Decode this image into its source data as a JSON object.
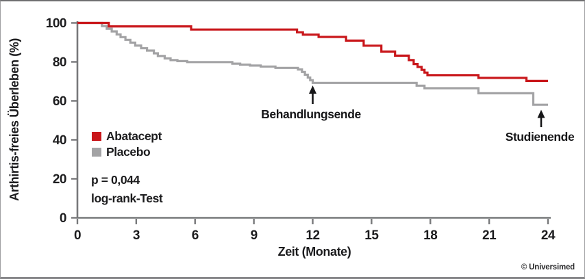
{
  "figure": {
    "copyright": "© Universimed"
  },
  "chart_data": {
    "type": "line",
    "subtype": "kaplan-meier-step-curves",
    "title": "",
    "xlabel": "Zeit (Monate)",
    "ylabel": "Arthirtis-freies Überleben (%)",
    "xlim": [
      0,
      24
    ],
    "ylim": [
      0,
      100
    ],
    "xticks": [
      0,
      3,
      6,
      9,
      12,
      15,
      18,
      21,
      24
    ],
    "yticks": [
      0,
      20,
      40,
      60,
      80,
      100
    ],
    "grid": false,
    "legend_position": "inside-left-middle",
    "axis_color": "#77787a",
    "text_color": "#1c1c1e",
    "series": [
      {
        "name": "Abatacept",
        "key": "abatacept",
        "color": "#c9171b",
        "points": [
          [
            0,
            100
          ],
          [
            1.6,
            98.2
          ],
          [
            5.8,
            96.6
          ],
          [
            11.2,
            95.2
          ],
          [
            11.5,
            94
          ],
          [
            12.3,
            92.8
          ],
          [
            13.7,
            90.9
          ],
          [
            14.6,
            88.3
          ],
          [
            15.5,
            85.3
          ],
          [
            16.2,
            83.2
          ],
          [
            16.9,
            80.9
          ],
          [
            17.15,
            78.9
          ],
          [
            17.35,
            77.4
          ],
          [
            17.55,
            75.9
          ],
          [
            17.7,
            74.5
          ],
          [
            17.85,
            73.2
          ],
          [
            20.45,
            71.8
          ],
          [
            22.9,
            70.2
          ],
          [
            24,
            70.2
          ]
        ]
      },
      {
        "name": "Placebo",
        "key": "placebo",
        "color": "#a3a3a5",
        "points": [
          [
            0,
            100
          ],
          [
            1.25,
            98.4
          ],
          [
            1.5,
            97
          ],
          [
            1.75,
            95.6
          ],
          [
            2.0,
            94.1
          ],
          [
            2.2,
            92.7
          ],
          [
            2.45,
            91.3
          ],
          [
            2.7,
            89.9
          ],
          [
            2.95,
            88.4
          ],
          [
            3.25,
            87
          ],
          [
            3.55,
            85.8
          ],
          [
            3.9,
            84.4
          ],
          [
            4.1,
            83
          ],
          [
            4.45,
            81.8
          ],
          [
            4.75,
            80.9
          ],
          [
            5.1,
            80.4
          ],
          [
            5.6,
            79.9
          ],
          [
            7.9,
            79.1
          ],
          [
            8.3,
            78.6
          ],
          [
            8.8,
            78.1
          ],
          [
            9.35,
            77.6
          ],
          [
            10.1,
            76.9
          ],
          [
            11.25,
            76.1
          ],
          [
            11.45,
            74.8
          ],
          [
            11.6,
            73.4
          ],
          [
            11.75,
            72
          ],
          [
            11.87,
            70.6
          ],
          [
            12.0,
            69.2
          ],
          [
            17.3,
            67.8
          ],
          [
            17.7,
            66.5
          ],
          [
            20.45,
            63.9
          ],
          [
            23.25,
            58
          ],
          [
            24,
            58
          ]
        ]
      }
    ],
    "annotations": [
      {
        "label": "Behandlungsende",
        "month": 12,
        "target_percent": 69
      },
      {
        "label": "Studienende",
        "month": 23.7,
        "target_percent": 58
      }
    ],
    "stats": {
      "p_value": "p = 0,044",
      "test": "log-rank-Test"
    }
  }
}
